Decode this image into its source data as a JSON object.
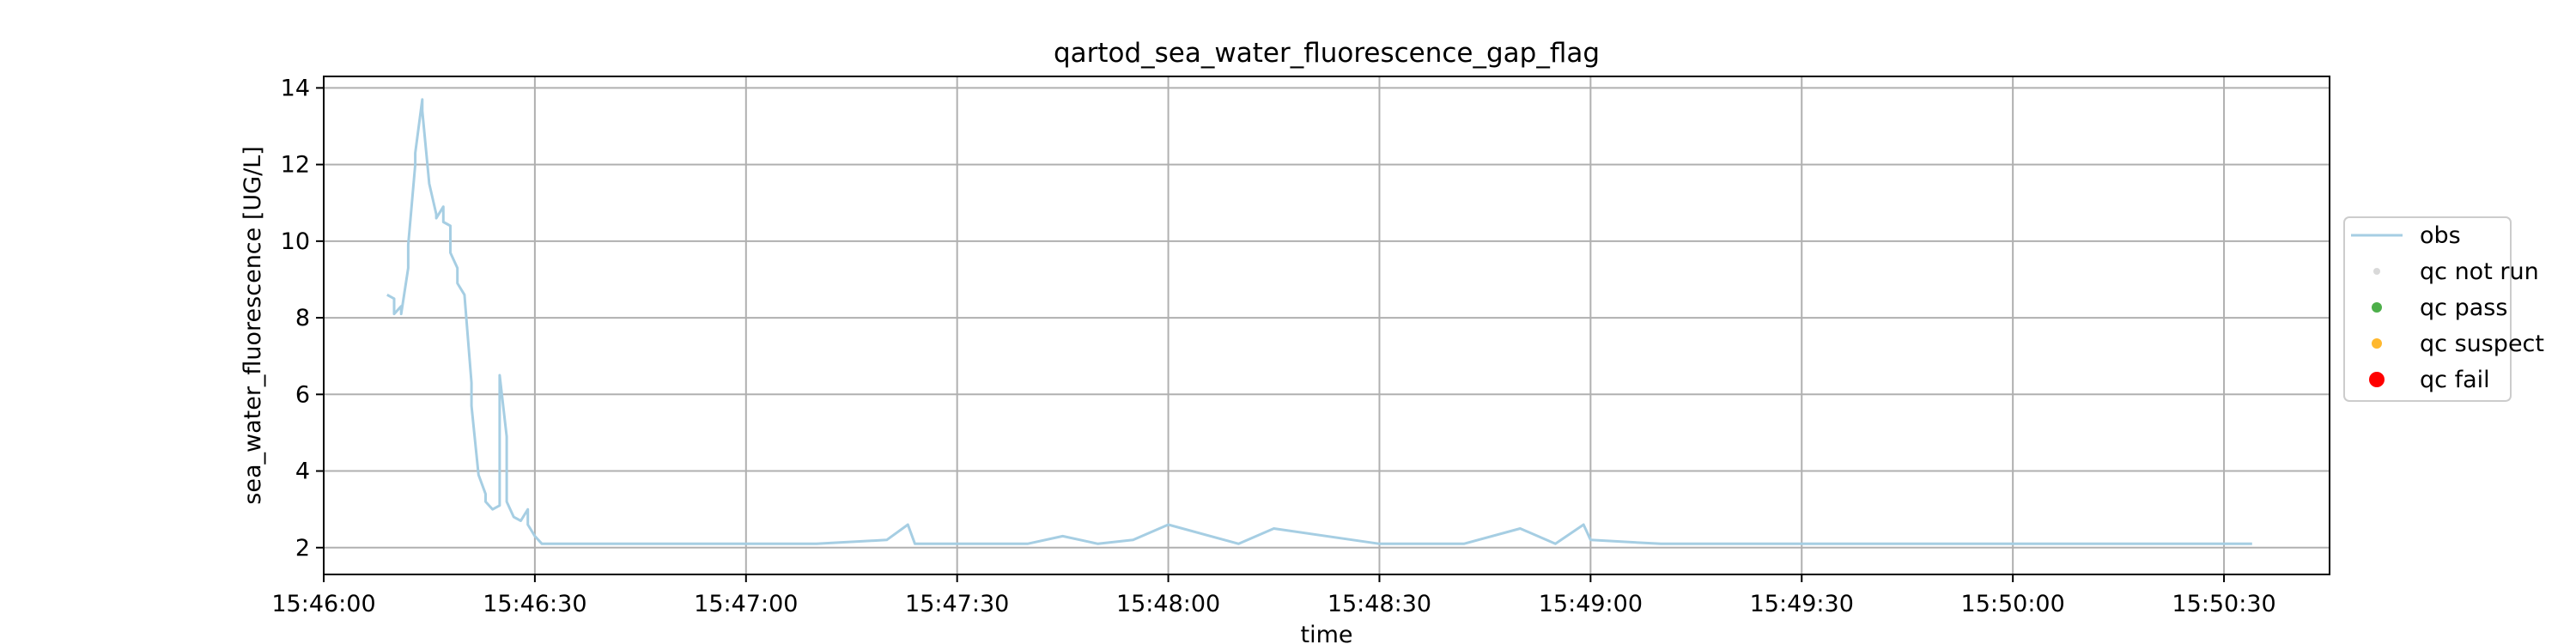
{
  "chart_data": {
    "type": "line",
    "title": "qartod_sea_water_fluorescence_gap_flag",
    "xlabel": "time",
    "ylabel": "sea_water_fluorescence [UG/L]",
    "x_unit": "time of day (HH:MM:SS)",
    "xlim": [
      "15:46:00",
      "15:50:45"
    ],
    "ylim": [
      1.3,
      14.3
    ],
    "grid": true,
    "legend_position": "right-outside",
    "x_ticks": [
      "15:46:00",
      "15:46:30",
      "15:47:00",
      "15:47:30",
      "15:48:00",
      "15:48:30",
      "15:49:00",
      "15:49:30",
      "15:50:00",
      "15:50:30"
    ],
    "y_ticks": [
      2,
      4,
      6,
      8,
      10,
      12,
      14
    ],
    "legend": [
      {
        "label": "obs",
        "kind": "line",
        "color": "#a6cee3"
      },
      {
        "label": "qc not run",
        "kind": "dot",
        "color": "#d9d9d9"
      },
      {
        "label": "qc pass",
        "kind": "dot",
        "color": "#4daf4a"
      },
      {
        "label": "qc suspect",
        "kind": "dot",
        "color": "#ffb82f"
      },
      {
        "label": "qc fail",
        "kind": "dot",
        "color": "#ff0000"
      }
    ],
    "series": [
      {
        "name": "obs",
        "color": "#a6cee3",
        "x": [
          "15:46:09",
          "15:46:10",
          "15:46:10",
          "15:46:11",
          "15:46:11",
          "15:46:12",
          "15:46:12",
          "15:46:13",
          "15:46:13",
          "15:46:14",
          "15:46:14",
          "15:46:15",
          "15:46:16",
          "15:46:16",
          "15:46:17",
          "15:46:17",
          "15:46:18",
          "15:46:18",
          "15:46:19",
          "15:46:19",
          "15:46:20",
          "15:46:21",
          "15:46:21",
          "15:46:22",
          "15:46:23",
          "15:46:23",
          "15:46:24",
          "15:46:25",
          "15:46:25",
          "15:46:26",
          "15:46:26",
          "15:46:27",
          "15:46:28",
          "15:46:29",
          "15:46:29",
          "15:46:30",
          "15:46:31",
          "15:46:32",
          "15:46:40",
          "15:46:50",
          "15:47:00",
          "15:47:10",
          "15:47:20",
          "15:47:23",
          "15:47:24",
          "15:47:40",
          "15:47:45",
          "15:47:50",
          "15:47:55",
          "15:48:00",
          "15:48:10",
          "15:48:15",
          "15:48:30",
          "15:48:42",
          "15:48:50",
          "15:48:55",
          "15:48:59",
          "15:49:00",
          "15:49:10",
          "15:49:30",
          "15:49:40",
          "15:50:00",
          "15:50:20",
          "15:50:34"
        ],
        "values": [
          8.6,
          8.5,
          8.1,
          8.3,
          8.1,
          9.3,
          9.9,
          12.0,
          12.3,
          13.7,
          13.4,
          11.5,
          10.7,
          10.6,
          10.9,
          10.5,
          10.4,
          9.7,
          9.3,
          8.9,
          8.6,
          6.3,
          5.7,
          3.9,
          3.4,
          3.2,
          3.0,
          3.1,
          6.5,
          4.9,
          3.2,
          2.8,
          2.7,
          3.0,
          2.6,
          2.3,
          2.1,
          2.1,
          2.1,
          2.1,
          2.1,
          2.1,
          2.2,
          2.6,
          2.1,
          2.1,
          2.3,
          2.1,
          2.2,
          2.6,
          2.1,
          2.5,
          2.1,
          2.1,
          2.5,
          2.1,
          2.6,
          2.2,
          2.1,
          2.1,
          2.1,
          2.1,
          2.1,
          2.1
        ]
      }
    ]
  }
}
